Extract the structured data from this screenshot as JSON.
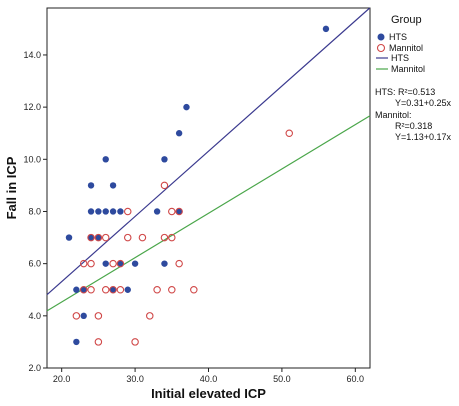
{
  "chart_data": {
    "type": "scatter",
    "xlabel": "Initial elevated ICP",
    "ylabel": "Fall in ICP",
    "xlim": [
      18,
      62
    ],
    "ylim": [
      2,
      15.8
    ],
    "x_ticks": [
      20,
      30,
      40,
      50,
      60
    ],
    "x_tick_labels": [
      "20.0",
      "30.0",
      "40.0",
      "50.0",
      "60.0"
    ],
    "y_ticks": [
      2,
      4,
      6,
      8,
      10,
      12,
      14
    ],
    "y_tick_labels": [
      "2.0",
      "4.0",
      "6.0",
      "8.0",
      "10.0",
      "12.0",
      "14.0"
    ],
    "grid": false,
    "legend_position": "right",
    "legend": {
      "title": "Group",
      "entries": [
        "HTS",
        "Mannitol",
        "HTS",
        "Mannitol"
      ]
    },
    "annotations": {
      "hts_r2": "HTS: R²=0.513",
      "hts_eq": "Y=0.31+0.25x",
      "mannitol_label": "Mannitol:",
      "mannitol_r2": "R²=0.318",
      "mannitol_eq": "Y=1.13+0.17x"
    },
    "series": [
      {
        "name": "HTS",
        "marker": "filled-circle",
        "color": "#2e4a9e",
        "x": [
          21,
          22,
          22,
          23,
          23,
          24,
          24,
          24,
          25,
          25,
          26,
          26,
          26,
          27,
          27,
          27,
          28,
          28,
          29,
          30,
          33,
          34,
          34,
          36,
          36,
          37,
          56
        ],
        "y": [
          7,
          3,
          5,
          4,
          5,
          7,
          8,
          9,
          7,
          8,
          10,
          8,
          6,
          8,
          9,
          5,
          6,
          8,
          5,
          6,
          8,
          10,
          6,
          11,
          8,
          12,
          15
        ]
      },
      {
        "name": "Mannitol",
        "marker": "open-circle",
        "color": "#d04848",
        "x": [
          22,
          23,
          23,
          24,
          24,
          24,
          25,
          25,
          25,
          26,
          26,
          27,
          27,
          28,
          28,
          29,
          29,
          30,
          31,
          32,
          33,
          34,
          34,
          35,
          35,
          35,
          36,
          36,
          38,
          51
        ],
        "y": [
          4,
          5,
          6,
          6,
          7,
          5,
          3,
          7,
          4,
          7,
          5,
          6,
          5,
          6,
          5,
          8,
          7,
          3,
          7,
          4,
          5,
          9,
          7,
          8,
          7,
          5,
          8,
          6,
          5,
          11
        ]
      }
    ],
    "fit_lines": [
      {
        "name": "HTS",
        "intercept": 0.31,
        "slope": 0.25,
        "color": "#3b3a8f"
      },
      {
        "name": "Mannitol",
        "intercept": 1.13,
        "slope": 0.17,
        "color": "#4aa64a"
      }
    ]
  }
}
